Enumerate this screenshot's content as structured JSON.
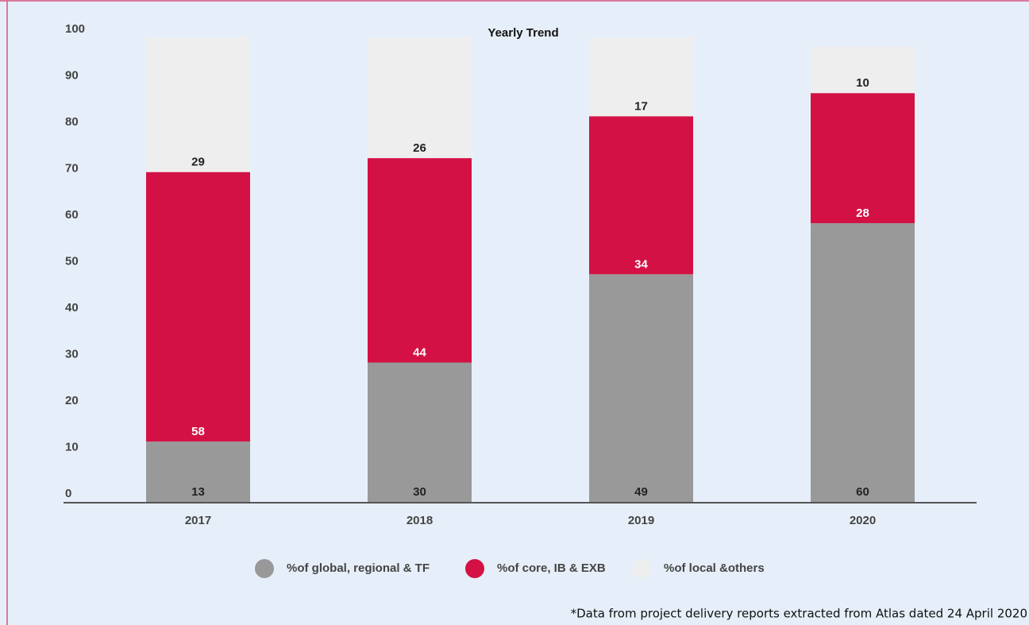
{
  "chart_data": {
    "type": "bar",
    "stacked": true,
    "title": "Yearly Trend",
    "categories": [
      "2017",
      "2018",
      "2019",
      "2020"
    ],
    "series": [
      {
        "name": "%of global, regional & TF",
        "color": "#999999",
        "label_color": "#222222",
        "values": [
          13,
          30,
          49,
          60
        ]
      },
      {
        "name": "%of core, IB & EXB",
        "color": "#d31145",
        "label_color": "#ffffff",
        "values": [
          58,
          44,
          34,
          28
        ]
      },
      {
        "name": "%of local &others",
        "color": "#eeeeee",
        "label_color": "#222222",
        "values": [
          29,
          26,
          17,
          10
        ]
      }
    ],
    "ylim": [
      0,
      100
    ],
    "yticks": [
      0,
      10,
      20,
      30,
      40,
      50,
      60,
      70,
      80,
      90,
      100
    ],
    "grid": false,
    "legend": "bottom",
    "note": "*Data from project delivery reports extracted from Atlas dated 24 April 2020"
  }
}
